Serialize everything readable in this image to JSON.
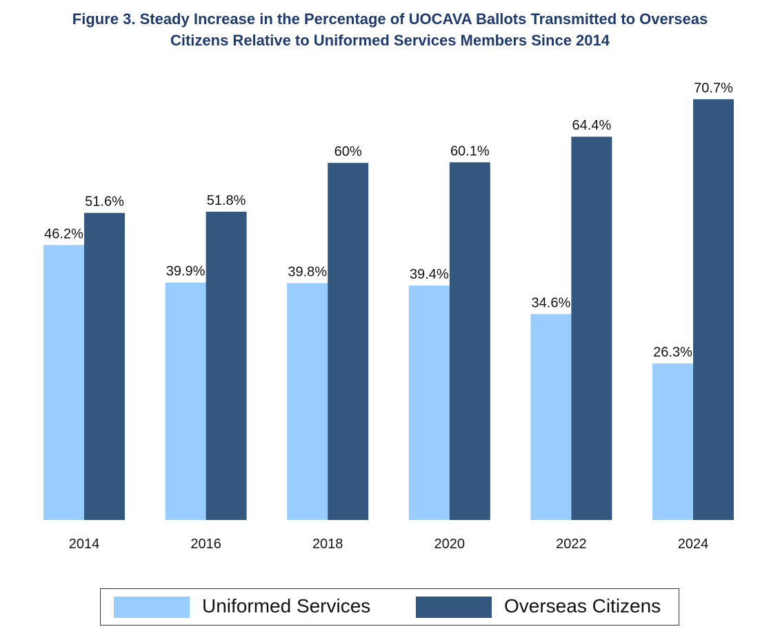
{
  "chart_data": {
    "type": "bar",
    "title": "Figure 3. Steady Increase in the Percentage of UOCAVA Ballots Transmitted to Overseas Citizens Relative to Uniformed Services Members Since 2014",
    "title_lines": [
      "Figure 3. Steady Increase in the Percentage of UOCAVA Ballots Transmitted to Overseas",
      "Citizens Relative to Uniformed Services Members Since 2014"
    ],
    "categories": [
      "2014",
      "2016",
      "2018",
      "2020",
      "2022",
      "2024"
    ],
    "series": [
      {
        "name": "Uniformed Services",
        "color": "#99ccff",
        "values": [
          46.2,
          39.9,
          39.8,
          39.4,
          34.6,
          26.3
        ],
        "labels": [
          "46.2%",
          "39.9%",
          "39.8%",
          "39.4%",
          "34.6%",
          "26.3%"
        ]
      },
      {
        "name": "Overseas Citizens",
        "color": "#34577f",
        "values": [
          51.6,
          51.8,
          60,
          60.1,
          64.4,
          70.7
        ],
        "labels": [
          "51.6%",
          "51.8%",
          "60%",
          "60.1%",
          "64.4%",
          "70.7%"
        ]
      }
    ],
    "xlabel": "",
    "ylabel": "",
    "ylim": [
      0,
      75
    ],
    "grid": false,
    "legend": "bottom"
  }
}
